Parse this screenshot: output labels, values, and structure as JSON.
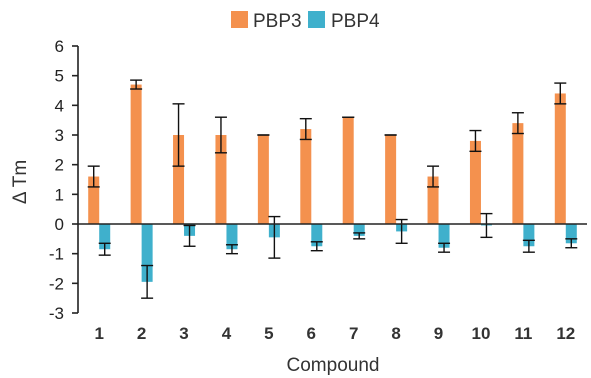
{
  "chart_data": {
    "type": "bar",
    "categories": [
      "1",
      "2",
      "3",
      "4",
      "5",
      "6",
      "7",
      "8",
      "9",
      "10",
      "11",
      "12"
    ],
    "series": [
      {
        "name": "PBP3",
        "color": "#F4914E",
        "values": [
          1.6,
          4.7,
          3.0,
          3.0,
          3.0,
          3.2,
          3.6,
          3.0,
          1.6,
          2.8,
          3.4,
          4.4
        ],
        "errors": [
          0.35,
          0.15,
          1.05,
          0.6,
          0.0,
          0.35,
          0.0,
          0.0,
          0.35,
          0.35,
          0.35,
          0.35
        ]
      },
      {
        "name": "PBP4",
        "color": "#3FB0CC",
        "values": [
          -0.85,
          -1.95,
          -0.4,
          -0.85,
          -0.45,
          -0.75,
          -0.4,
          -0.25,
          -0.8,
          -0.05,
          -0.75,
          -0.65
        ],
        "errors": [
          0.2,
          0.55,
          0.35,
          0.15,
          0.7,
          0.15,
          0.1,
          0.4,
          0.15,
          0.4,
          0.2,
          0.15
        ]
      }
    ],
    "ylabel": "Δ Tm",
    "xlabel": "Compound",
    "ylim": [
      -3,
      6
    ],
    "yticks": [
      -3,
      -2,
      -1,
      0,
      1,
      2,
      3,
      4,
      5,
      6
    ],
    "grid": false,
    "legend": "top-center"
  }
}
